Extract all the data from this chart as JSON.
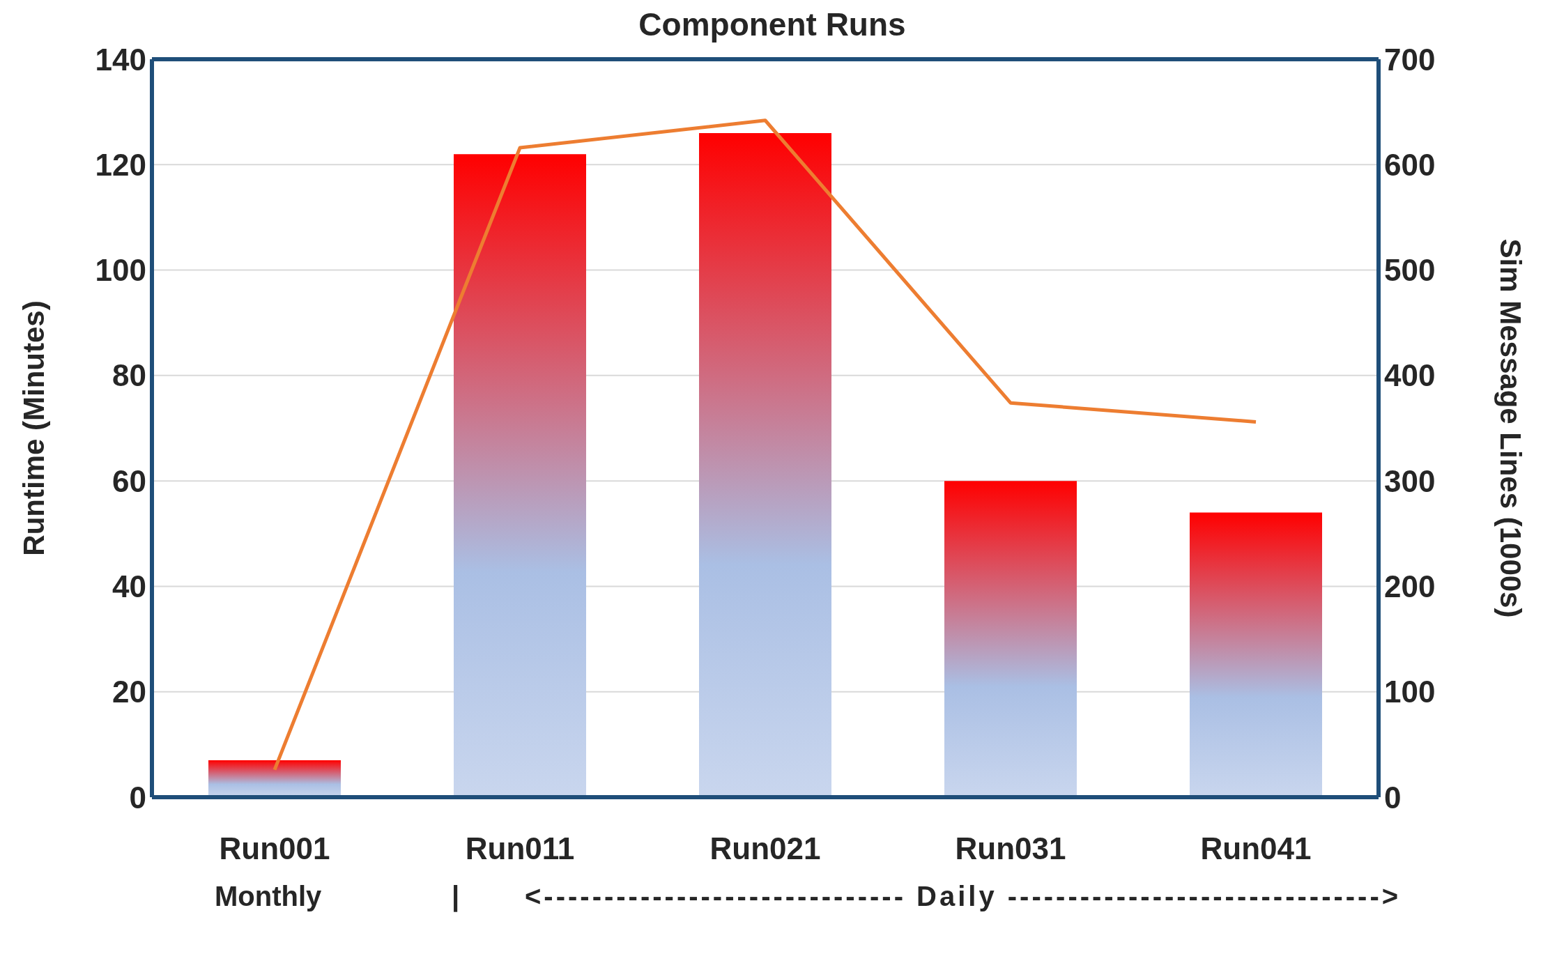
{
  "chart_data": {
    "type": "bar",
    "title": "Component Runs",
    "categories": [
      "Run001",
      "Run011",
      "Run021",
      "Run031",
      "Run041"
    ],
    "series": [
      {
        "color": "#ff0000",
        "values": [
          7,
          122,
          126,
          60,
          54
        ]
      },
      {
        "type": "line",
        "axis": "y2",
        "color": "#ed7d31",
        "values": [
          26,
          616,
          642,
          374,
          356
        ]
      }
    ],
    "ylabel": "Runtime (Minutes)",
    "y2label": "Sim Message Lines (1000s)",
    "ylim": [
      0,
      140
    ],
    "yticks": [
      0,
      20,
      40,
      60,
      80,
      100,
      120,
      140
    ],
    "y2lim": [
      0,
      700
    ],
    "y2ticks": [
      0,
      100,
      200,
      300,
      400,
      500,
      600,
      700
    ],
    "grid": "y",
    "legend": false,
    "marker": "none",
    "line_style": "solid",
    "annotations": [
      "Monthly",
      "|",
      "<------------------------------ Daily ------------------------------->"
    ]
  }
}
